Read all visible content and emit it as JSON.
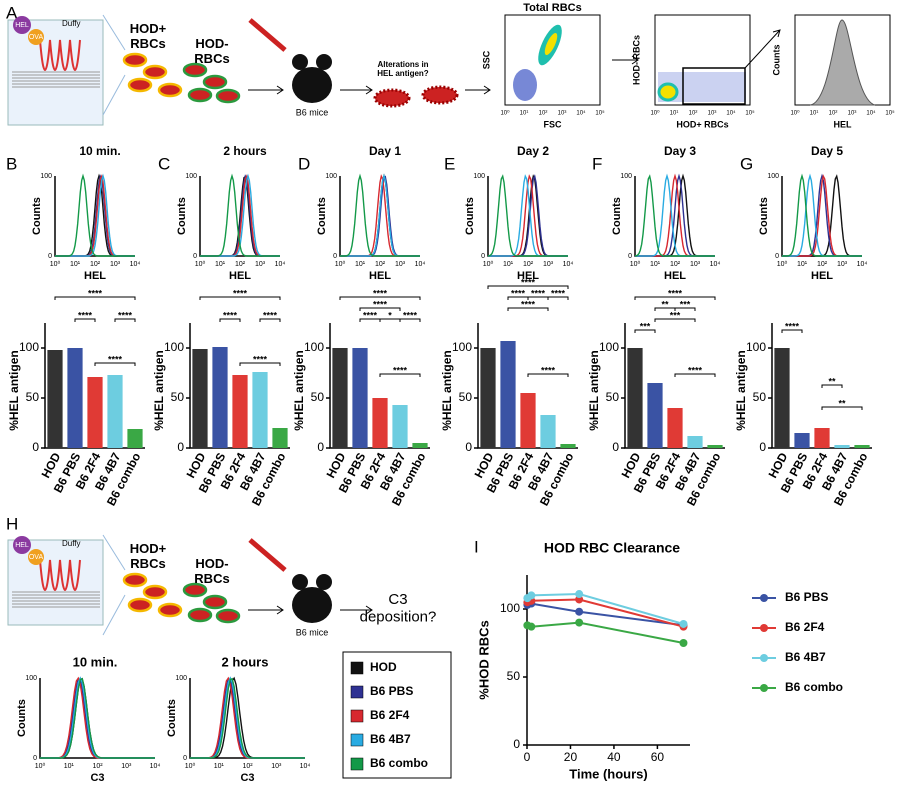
{
  "panels": [
    "A",
    "B",
    "C",
    "D",
    "E",
    "F",
    "G",
    "H",
    "I"
  ],
  "schematic": {
    "hel": "HEL",
    "ova": "OVA",
    "duffy": "Duffy",
    "hod_pos": "HOD+\nRBCs",
    "hod_neg": "HOD-\nRBCs",
    "mice": "B6 mice",
    "alterations": "Alterations in\nHEL antigen?",
    "c3": "C3\ndeposition?"
  },
  "flow": {
    "total_title": "Total RBCs",
    "ssc": "SSC",
    "fsc": "FSC",
    "hod_neg": "HOD- RBCs",
    "hod_pos": "HOD+ RBCs",
    "counts": "Counts",
    "hel": "HEL",
    "ticks": [
      "10⁰",
      "10¹",
      "10²",
      "10³",
      "10⁴",
      "10⁵"
    ]
  },
  "histogram": {
    "ylabel": "Counts",
    "xlabel": "HEL",
    "c3_label": "C3",
    "yticks": [
      "0",
      "100"
    ],
    "xticks": [
      "10⁰",
      "10¹",
      "10²",
      "10³",
      "10⁴"
    ],
    "c3_titles": [
      "10 min.",
      "2 hours"
    ]
  },
  "legend": {
    "names": [
      "HOD",
      "B6 PBS",
      "B6 2F4",
      "B6 4B7",
      "B6 combo"
    ],
    "colors": [
      "#111111",
      "#2e3192",
      "#d7282f",
      "#29abe2",
      "#139948"
    ]
  },
  "chart_data": [
    {
      "type": "bar",
      "title": "10 min.",
      "y_label": "%HEL antigen",
      "categories": [
        "HOD",
        "B6 PBS",
        "B6 2F4",
        "B6 4B7",
        "B6 combo"
      ],
      "values": [
        98,
        100,
        71,
        73,
        19
      ],
      "colors": [
        "#333333",
        "#3a53a4",
        "#e03a35",
        "#6dcde0",
        "#3aa845"
      ],
      "ylim": [
        0,
        125
      ],
      "yticks": [
        0,
        50,
        100
      ],
      "annotations": [
        "****",
        "****",
        "****",
        "****"
      ]
    },
    {
      "type": "bar",
      "title": "2 hours",
      "y_label": "%HEL antigen",
      "categories": [
        "HOD",
        "B6 PBS",
        "B6 2F4",
        "B6 4B7",
        "B6 combo"
      ],
      "values": [
        99,
        101,
        73,
        76,
        20
      ],
      "colors": [
        "#333333",
        "#3a53a4",
        "#e03a35",
        "#6dcde0",
        "#3aa845"
      ],
      "ylim": [
        0,
        125
      ],
      "yticks": [
        0,
        50,
        100
      ],
      "annotations": [
        "****",
        "****",
        "****",
        "****"
      ]
    },
    {
      "type": "bar",
      "title": "Day 1",
      "y_label": "%HEL antigen",
      "categories": [
        "HOD",
        "B6 PBS",
        "B6 2F4",
        "B6 4B7",
        "B6 combo"
      ],
      "values": [
        100,
        100,
        50,
        43,
        5
      ],
      "colors": [
        "#333333",
        "#3a53a4",
        "#e03a35",
        "#6dcde0",
        "#3aa845"
      ],
      "ylim": [
        0,
        125
      ],
      "yticks": [
        0,
        50,
        100
      ],
      "annotations": [
        "****",
        "*",
        "****",
        "****",
        "****",
        "****"
      ]
    },
    {
      "type": "bar",
      "title": "Day 2",
      "y_label": "%HEL antigen",
      "categories": [
        "HOD",
        "B6 PBS",
        "B6 2F4",
        "B6 4B7",
        "B6 combo"
      ],
      "values": [
        100,
        107,
        55,
        33,
        4
      ],
      "colors": [
        "#333333",
        "#3a53a4",
        "#e03a35",
        "#6dcde0",
        "#3aa845"
      ],
      "ylim": [
        0,
        125
      ],
      "yticks": [
        0,
        50,
        100
      ],
      "annotations": [
        "****",
        "****",
        "****",
        "****",
        "****",
        "****"
      ]
    },
    {
      "type": "bar",
      "title": "Day 3",
      "y_label": "%HEL antigen",
      "categories": [
        "HOD",
        "B6 PBS",
        "B6 2F4",
        "B6 4B7",
        "B6 combo"
      ],
      "values": [
        100,
        65,
        40,
        12,
        3
      ],
      "colors": [
        "#333333",
        "#3a53a4",
        "#e03a35",
        "#6dcde0",
        "#3aa845"
      ],
      "ylim": [
        0,
        125
      ],
      "yticks": [
        0,
        50,
        100
      ],
      "annotations": [
        "***",
        "**",
        "***",
        "***",
        "****",
        "****"
      ]
    },
    {
      "type": "bar",
      "title": "Day 5",
      "y_label": "%HEL antigen",
      "categories": [
        "HOD",
        "B6 PBS",
        "B6 2F4",
        "B6 4B7",
        "B6 combo"
      ],
      "values": [
        100,
        15,
        20,
        3,
        3
      ],
      "colors": [
        "#333333",
        "#3a53a4",
        "#e03a35",
        "#6dcde0",
        "#3aa845"
      ],
      "ylim": [
        0,
        125
      ],
      "yticks": [
        0,
        50,
        100
      ],
      "annotations": [
        "****",
        "**",
        "**"
      ]
    },
    {
      "type": "line",
      "title": "HOD RBC Clearance",
      "x_label": "Time (hours)",
      "y_label": "%HOD RBCs",
      "x": [
        0.17,
        2,
        24,
        72
      ],
      "xlim": [
        0,
        75
      ],
      "xticks": [
        0,
        20,
        40,
        60
      ],
      "ylim": [
        0,
        125
      ],
      "yticks": [
        0,
        50,
        100
      ],
      "series": [
        {
          "name": "B6 PBS",
          "color": "#3a53a4",
          "values": [
            103,
            104,
            98,
            88
          ]
        },
        {
          "name": "B6 2F4",
          "color": "#e03a35",
          "values": [
            105,
            106,
            107,
            87
          ]
        },
        {
          "name": "B6 4B7",
          "color": "#6dcde0",
          "values": [
            108,
            110,
            111,
            89
          ]
        },
        {
          "name": "B6 combo",
          "color": "#3aa845",
          "values": [
            88,
            87,
            90,
            75
          ]
        }
      ]
    }
  ]
}
